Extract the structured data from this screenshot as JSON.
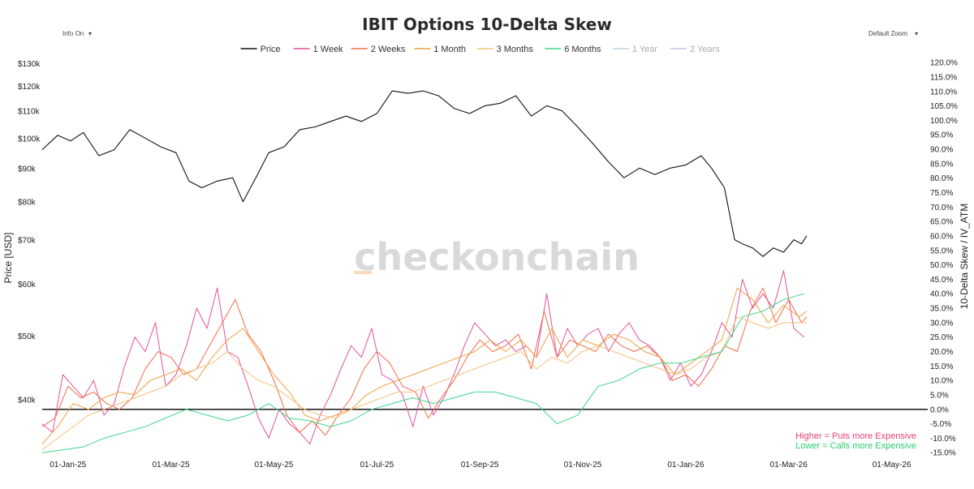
{
  "controls": {
    "info_label": "Info On",
    "zoom_label": "Default Zoom",
    "dropdown_glyph": "▾"
  },
  "watermark": "checkonchain",
  "chart_data": {
    "type": "line",
    "title": "IBIT Options 10-Delta Skew",
    "x_ticks": [
      {
        "label": "01-Jan-25",
        "t": 0.5
      },
      {
        "label": "01-Mar-25",
        "t": 2.5
      },
      {
        "label": "01-May-25",
        "t": 4.5
      },
      {
        "label": "01-Jul-25",
        "t": 6.5
      },
      {
        "label": "01-Sep-25",
        "t": 8.5
      },
      {
        "label": "01-Nov-25",
        "t": 10.5
      },
      {
        "label": "01-Jan-26",
        "t": 12.5
      },
      {
        "label": "01-Mar-26",
        "t": 14.5
      },
      {
        "label": "01-May-26",
        "t": 16.5
      }
    ],
    "x_range": [
      0,
      17.2
    ],
    "y_left": {
      "label": "Price [USD]",
      "scale": "log",
      "range": [
        33000,
        133000
      ],
      "ticks": [
        {
          "v": 40000,
          "label": "$40k"
        },
        {
          "v": 50000,
          "label": "$50k"
        },
        {
          "v": 60000,
          "label": "$60k"
        },
        {
          "v": 70000,
          "label": "$70k"
        },
        {
          "v": 80000,
          "label": "$80k"
        },
        {
          "v": 90000,
          "label": "$90k"
        },
        {
          "v": 100000,
          "label": "$100k"
        },
        {
          "v": 110000,
          "label": "$110k"
        },
        {
          "v": 120000,
          "label": "$120k"
        },
        {
          "v": 130000,
          "label": "$130k"
        }
      ]
    },
    "y_right": {
      "label": "10-Delta Skew / IV_ATM",
      "scale": "linear",
      "range": [
        -15.5,
        122
      ],
      "ticks": [
        -15,
        -10,
        -5,
        0,
        5,
        10,
        15,
        20,
        25,
        30,
        35,
        40,
        45,
        50,
        55,
        60,
        65,
        70,
        75,
        80,
        85,
        90,
        95,
        100,
        105,
        110,
        115,
        120
      ],
      "zero_line": true
    },
    "series": [
      {
        "name": "Price",
        "color": "#111111",
        "axis": "left",
        "visible": true,
        "width": 1.1,
        "t": [
          0.0,
          0.3,
          0.55,
          0.8,
          1.1,
          1.4,
          1.7,
          2.0,
          2.3,
          2.6,
          2.85,
          3.1,
          3.4,
          3.7,
          3.9,
          4.15,
          4.4,
          4.7,
          5.0,
          5.3,
          5.6,
          5.9,
          6.2,
          6.5,
          6.8,
          7.1,
          7.4,
          7.7,
          8.0,
          8.3,
          8.6,
          8.9,
          9.2,
          9.5,
          9.8,
          10.1,
          10.4,
          10.7,
          11.0,
          11.3,
          11.6,
          11.9,
          12.2,
          12.5,
          12.8,
          13.0,
          13.25,
          13.45,
          13.6,
          13.8,
          14.0,
          14.2,
          14.4,
          14.6,
          14.75,
          14.85
        ],
        "values": [
          96000,
          101000,
          99000,
          102000,
          94000,
          96000,
          103000,
          100000,
          97000,
          95000,
          86000,
          84000,
          86000,
          87000,
          80000,
          87000,
          95000,
          97000,
          103000,
          104000,
          106000,
          108000,
          106000,
          109000,
          118000,
          117000,
          118000,
          116000,
          111000,
          109000,
          112000,
          113000,
          116000,
          108000,
          112000,
          110000,
          104000,
          98000,
          92000,
          87000,
          90000,
          88000,
          90000,
          91000,
          94000,
          90000,
          84000,
          70000,
          69000,
          68000,
          66000,
          68000,
          67000,
          70000,
          69000,
          71000
        ]
      },
      {
        "name": "1 Week",
        "color": "#e3509b",
        "axis": "right",
        "visible": true,
        "width": 1.0,
        "t": [
          0.0,
          0.2,
          0.4,
          0.6,
          0.8,
          1.0,
          1.2,
          1.4,
          1.6,
          1.8,
          2.0,
          2.2,
          2.4,
          2.6,
          2.8,
          3.0,
          3.2,
          3.4,
          3.6,
          3.8,
          4.0,
          4.2,
          4.4,
          4.6,
          4.8,
          5.0,
          5.2,
          5.4,
          5.6,
          5.8,
          6.0,
          6.2,
          6.4,
          6.6,
          6.8,
          7.0,
          7.2,
          7.4,
          7.6,
          7.8,
          8.0,
          8.2,
          8.4,
          8.6,
          8.8,
          9.0,
          9.2,
          9.4,
          9.6,
          9.8,
          10.0,
          10.2,
          10.4,
          10.6,
          10.8,
          11.0,
          11.2,
          11.4,
          11.6,
          11.8,
          12.0,
          12.2,
          12.4,
          12.6,
          12.8,
          13.0,
          13.2,
          13.4,
          13.6,
          13.8,
          14.0,
          14.2,
          14.4,
          14.6,
          14.8
        ],
        "values": [
          -5,
          -8,
          12,
          8,
          4,
          10,
          -2,
          2,
          15,
          25,
          20,
          30,
          8,
          12,
          22,
          35,
          28,
          42,
          20,
          18,
          8,
          -3,
          -10,
          0,
          -5,
          -8,
          -12,
          -2,
          5,
          14,
          22,
          18,
          28,
          12,
          10,
          5,
          -6,
          8,
          -2,
          4,
          12,
          22,
          30,
          26,
          22,
          24,
          20,
          22,
          18,
          40,
          18,
          28,
          22,
          26,
          28,
          20,
          26,
          30,
          24,
          22,
          18,
          10,
          16,
          8,
          12,
          20,
          30,
          25,
          45,
          35,
          40,
          35,
          48,
          28,
          25
        ]
      },
      {
        "name": "2 Weeks",
        "color": "#f26b4a",
        "axis": "right",
        "visible": true,
        "width": 1.0,
        "t": [
          0.0,
          0.25,
          0.5,
          0.75,
          1.0,
          1.25,
          1.5,
          1.75,
          2.0,
          2.25,
          2.5,
          2.75,
          3.0,
          3.25,
          3.5,
          3.75,
          4.0,
          4.25,
          4.5,
          4.75,
          5.0,
          5.25,
          5.5,
          5.75,
          6.0,
          6.25,
          6.5,
          6.75,
          7.0,
          7.25,
          7.5,
          7.75,
          8.0,
          8.25,
          8.5,
          8.75,
          9.0,
          9.25,
          9.5,
          9.75,
          10.0,
          10.25,
          10.5,
          10.75,
          11.0,
          11.25,
          11.5,
          11.75,
          12.0,
          12.25,
          12.5,
          12.75,
          13.0,
          13.25,
          13.5,
          13.75,
          14.0,
          14.25,
          14.5,
          14.75,
          14.85
        ],
        "values": [
          -6,
          -3,
          8,
          4,
          6,
          2,
          0,
          4,
          14,
          20,
          18,
          12,
          14,
          22,
          30,
          38,
          26,
          20,
          10,
          -2,
          -8,
          -4,
          -9,
          -2,
          4,
          14,
          20,
          16,
          8,
          6,
          -3,
          4,
          10,
          18,
          24,
          20,
          22,
          26,
          14,
          34,
          18,
          24,
          22,
          20,
          26,
          22,
          20,
          22,
          18,
          10,
          12,
          8,
          14,
          22,
          20,
          34,
          42,
          30,
          38,
          30,
          32
        ]
      },
      {
        "name": "1 Month",
        "color": "#f0a040",
        "axis": "right",
        "visible": true,
        "width": 1.0,
        "t": [
          0.0,
          0.3,
          0.6,
          0.9,
          1.2,
          1.5,
          1.8,
          2.1,
          2.4,
          2.7,
          3.0,
          3.3,
          3.6,
          3.9,
          4.2,
          4.5,
          4.8,
          5.1,
          5.4,
          5.7,
          6.0,
          6.3,
          6.6,
          6.9,
          7.2,
          7.5,
          7.8,
          8.1,
          8.4,
          8.7,
          9.0,
          9.3,
          9.6,
          9.9,
          10.2,
          10.5,
          10.8,
          11.1,
          11.4,
          11.7,
          12.0,
          12.3,
          12.6,
          12.9,
          13.2,
          13.5,
          13.8,
          14.1,
          14.4,
          14.7,
          14.85
        ],
        "values": [
          -12,
          -6,
          2,
          0,
          4,
          6,
          5,
          10,
          12,
          14,
          10,
          18,
          24,
          28,
          20,
          12,
          6,
          -2,
          -4,
          -2,
          0,
          5,
          8,
          10,
          12,
          14,
          16,
          18,
          20,
          24,
          20,
          24,
          18,
          28,
          18,
          24,
          22,
          26,
          24,
          20,
          18,
          12,
          16,
          20,
          24,
          42,
          38,
          30,
          36,
          32,
          34
        ]
      },
      {
        "name": "3 Months",
        "color": "#f5c07a",
        "axis": "right",
        "visible": true,
        "width": 1.0,
        "t": [
          0.0,
          0.3,
          0.6,
          0.9,
          1.2,
          1.5,
          1.8,
          2.1,
          2.4,
          2.7,
          3.0,
          3.3,
          3.6,
          3.9,
          4.2,
          4.5,
          4.8,
          5.1,
          5.4,
          5.7,
          6.0,
          6.3,
          6.6,
          6.9,
          7.2,
          7.5,
          7.8,
          8.1,
          8.4,
          8.7,
          9.0,
          9.3,
          9.6,
          9.9,
          10.2,
          10.5,
          10.8,
          11.1,
          11.4,
          11.7,
          12.0,
          12.3,
          12.6,
          12.9,
          13.2,
          13.5,
          13.8,
          14.1,
          14.4,
          14.7,
          14.85
        ],
        "values": [
          -14,
          -10,
          -6,
          -2,
          0,
          2,
          4,
          6,
          8,
          12,
          14,
          16,
          20,
          14,
          10,
          8,
          4,
          0,
          -2,
          -3,
          0,
          2,
          4,
          6,
          6,
          8,
          10,
          12,
          14,
          16,
          18,
          20,
          14,
          18,
          16,
          20,
          22,
          20,
          18,
          16,
          14,
          12,
          14,
          18,
          20,
          32,
          30,
          28,
          30,
          30,
          30
        ]
      },
      {
        "name": "6 Months",
        "color": "#3ed68a",
        "axis": "right",
        "visible": true,
        "width": 1.0,
        "t": [
          0.0,
          0.4,
          0.8,
          1.2,
          1.6,
          2.0,
          2.4,
          2.8,
          3.2,
          3.6,
          4.0,
          4.4,
          4.8,
          5.2,
          5.6,
          6.0,
          6.4,
          6.8,
          7.2,
          7.6,
          8.0,
          8.4,
          8.8,
          9.2,
          9.6,
          10.0,
          10.4,
          10.8,
          11.2,
          11.6,
          12.0,
          12.4,
          12.8,
          13.2,
          13.6,
          14.0,
          14.4,
          14.8
        ],
        "values": [
          -15,
          -14,
          -13,
          -10,
          -8,
          -6,
          -3,
          0,
          -2,
          -4,
          -2,
          2,
          -3,
          -4,
          -6,
          -4,
          0,
          2,
          4,
          2,
          4,
          6,
          6,
          4,
          2,
          -5,
          -2,
          8,
          10,
          14,
          16,
          16,
          18,
          20,
          32,
          34,
          38,
          40
        ]
      },
      {
        "name": "1 Year",
        "color": "#b8d4ec",
        "axis": "right",
        "visible": false,
        "width": 1.0,
        "t": [],
        "values": []
      },
      {
        "name": "2 Years",
        "color": "#c9c4e6",
        "axis": "right",
        "visible": false,
        "width": 1.0,
        "t": [],
        "values": []
      }
    ],
    "annotations": [
      {
        "text": "Higher = Puts more Expensive",
        "color": "#e8407a"
      },
      {
        "text": "Lower = Calls more Expensive",
        "color": "#2ecc71"
      }
    ]
  }
}
